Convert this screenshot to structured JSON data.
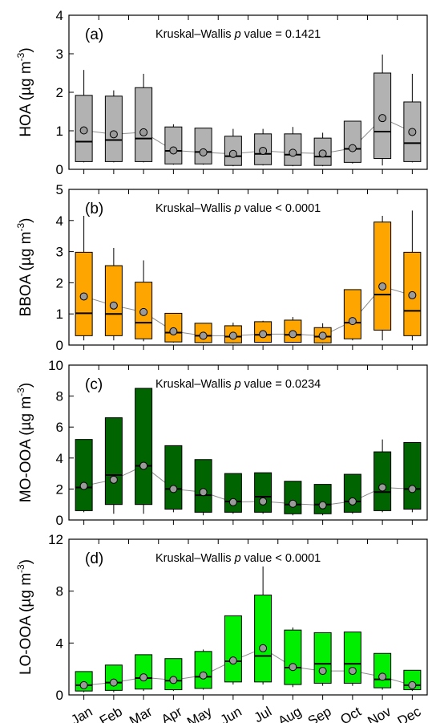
{
  "chart_data": [
    {
      "type": "box",
      "panel_label": "(a)",
      "stat_text": {
        "pre": "Kruskal–Wallis ",
        "p": "p",
        "post": " value = 0.1421"
      },
      "ylabel": {
        "main": "HOA (µg m",
        "sup": "-3",
        "end": ")"
      },
      "ylim": [
        0,
        4
      ],
      "yticks": [
        0,
        1,
        2,
        3,
        4
      ],
      "box_color": "#b2b2b2",
      "categories": [
        "Jan",
        "Feb",
        "Mar",
        "Apr",
        "May",
        "Jun",
        "Jul",
        "Aug",
        "Sep",
        "Oct",
        "Nov",
        "Dec"
      ],
      "boxes": [
        {
          "wlo": 0.18,
          "q1": 0.2,
          "median": 0.72,
          "q3": 1.92,
          "whi": 2.58,
          "mean": 1.01
        },
        {
          "wlo": 0.18,
          "q1": 0.2,
          "median": 0.76,
          "q3": 1.9,
          "whi": 2.05,
          "mean": 0.91
        },
        {
          "wlo": 0.18,
          "q1": 0.2,
          "median": 0.8,
          "q3": 2.12,
          "whi": 2.48,
          "mean": 0.96
        },
        {
          "wlo": 0.12,
          "q1": 0.14,
          "median": 0.48,
          "q3": 1.1,
          "whi": 1.17,
          "mean": 0.49
        },
        {
          "wlo": 0.12,
          "q1": 0.14,
          "median": 0.45,
          "q3": 1.07,
          "whi": 1.07,
          "mean": 0.44
        },
        {
          "wlo": 0.08,
          "q1": 0.1,
          "median": 0.34,
          "q3": 0.86,
          "whi": 1.05,
          "mean": 0.4
        },
        {
          "wlo": 0.1,
          "q1": 0.12,
          "median": 0.4,
          "q3": 0.92,
          "whi": 1.05,
          "mean": 0.48
        },
        {
          "wlo": 0.08,
          "q1": 0.1,
          "median": 0.38,
          "q3": 0.92,
          "whi": 1.1,
          "mean": 0.43
        },
        {
          "wlo": 0.08,
          "q1": 0.1,
          "median": 0.33,
          "q3": 0.81,
          "whi": 0.95,
          "mean": 0.41
        },
        {
          "wlo": 0.15,
          "q1": 0.18,
          "median": 0.53,
          "q3": 1.25,
          "whi": 1.25,
          "mean": 0.55
        },
        {
          "wlo": 0.1,
          "q1": 0.28,
          "median": 0.98,
          "q3": 2.5,
          "whi": 2.98,
          "mean": 1.33
        },
        {
          "wlo": 0.18,
          "q1": 0.2,
          "median": 0.68,
          "q3": 1.75,
          "whi": 2.48,
          "mean": 0.97
        }
      ]
    },
    {
      "type": "box",
      "panel_label": "(b)",
      "stat_text": {
        "pre": "Kruskal–Wallis ",
        "p": "p",
        "post": " value < 0.0001"
      },
      "ylabel": {
        "main": "BBOA (µg m",
        "sup": "-3",
        "end": ")"
      },
      "ylim": [
        0,
        5
      ],
      "yticks": [
        0,
        1,
        2,
        3,
        4,
        5
      ],
      "box_color": "#ffa500",
      "categories": [
        "Jan",
        "Feb",
        "Mar",
        "Apr",
        "May",
        "Jun",
        "Jul",
        "Aug",
        "Sep",
        "Oct",
        "Nov",
        "Dec"
      ],
      "boxes": [
        {
          "wlo": 0.15,
          "q1": 0.3,
          "median": 1.02,
          "q3": 2.98,
          "whi": 4.15,
          "mean": 1.56
        },
        {
          "wlo": 0.15,
          "q1": 0.3,
          "median": 1.0,
          "q3": 2.55,
          "whi": 3.12,
          "mean": 1.27
        },
        {
          "wlo": 0.12,
          "q1": 0.2,
          "median": 0.72,
          "q3": 2.02,
          "whi": 2.72,
          "mean": 1.06
        },
        {
          "wlo": 0.08,
          "q1": 0.1,
          "median": 0.4,
          "q3": 1.02,
          "whi": 1.02,
          "mean": 0.44
        },
        {
          "wlo": 0.06,
          "q1": 0.08,
          "median": 0.3,
          "q3": 0.7,
          "whi": 0.7,
          "mean": 0.3
        },
        {
          "wlo": 0.05,
          "q1": 0.07,
          "median": 0.27,
          "q3": 0.62,
          "whi": 0.72,
          "mean": 0.3
        },
        {
          "wlo": 0.07,
          "q1": 0.09,
          "median": 0.33,
          "q3": 0.75,
          "whi": 0.78,
          "mean": 0.35
        },
        {
          "wlo": 0.07,
          "q1": 0.09,
          "median": 0.33,
          "q3": 0.8,
          "whi": 0.9,
          "mean": 0.35
        },
        {
          "wlo": 0.05,
          "q1": 0.07,
          "median": 0.27,
          "q3": 0.56,
          "whi": 0.7,
          "mean": 0.3
        },
        {
          "wlo": 0.15,
          "q1": 0.2,
          "median": 0.72,
          "q3": 1.78,
          "whi": 1.78,
          "mean": 0.77
        },
        {
          "wlo": 0.15,
          "q1": 0.48,
          "median": 1.62,
          "q3": 3.95,
          "whi": 4.15,
          "mean": 1.88
        },
        {
          "wlo": 0.15,
          "q1": 0.3,
          "median": 1.1,
          "q3": 2.98,
          "whi": 4.32,
          "mean": 1.6
        }
      ]
    },
    {
      "type": "box",
      "panel_label": "(c)",
      "stat_text": {
        "pre": "Kruskal–Wallis ",
        "p": "p",
        "post": " value = 0.0234"
      },
      "ylabel": {
        "main": "MO-OOA (µg m",
        "sup": "-3",
        "end": ")"
      },
      "ylim": [
        0,
        10
      ],
      "yticks": [
        0,
        2,
        4,
        6,
        8,
        10
      ],
      "box_color": "#006400",
      "categories": [
        "Jan",
        "Feb",
        "Mar",
        "Apr",
        "May",
        "Jun",
        "Jul",
        "Aug",
        "Sep",
        "Oct",
        "Nov",
        "Dec"
      ],
      "boxes": [
        {
          "wlo": 0.5,
          "q1": 0.6,
          "median": 2.1,
          "q3": 5.2,
          "whi": 5.2,
          "mean": 2.2
        },
        {
          "wlo": 0.4,
          "q1": 1.0,
          "median": 2.9,
          "q3": 6.6,
          "whi": 6.6,
          "mean": 2.6
        },
        {
          "wlo": 0.4,
          "q1": 1.0,
          "median": 3.5,
          "q3": 8.5,
          "whi": 8.5,
          "mean": 3.5
        },
        {
          "wlo": 0.5,
          "q1": 0.7,
          "median": 2.0,
          "q3": 4.8,
          "whi": 4.8,
          "mean": 2.0
        },
        {
          "wlo": 0.3,
          "q1": 0.5,
          "median": 1.6,
          "q3": 3.9,
          "whi": 3.9,
          "mean": 1.8
        },
        {
          "wlo": 0.4,
          "q1": 0.5,
          "median": 1.2,
          "q3": 3.0,
          "whi": 3.0,
          "mean": 1.15
        },
        {
          "wlo": 0.4,
          "q1": 0.5,
          "median": 1.5,
          "q3": 3.05,
          "whi": 3.05,
          "mean": 1.2
        },
        {
          "wlo": 0.3,
          "q1": 0.4,
          "median": 1.0,
          "q3": 2.5,
          "whi": 2.5,
          "mean": 1.05
        },
        {
          "wlo": 0.3,
          "q1": 0.4,
          "median": 1.0,
          "q3": 2.3,
          "whi": 2.3,
          "mean": 0.95
        },
        {
          "wlo": 0.4,
          "q1": 0.5,
          "median": 1.2,
          "q3": 2.95,
          "whi": 2.95,
          "mean": 1.2
        },
        {
          "wlo": 0.5,
          "q1": 0.6,
          "median": 1.8,
          "q3": 4.4,
          "whi": 5.2,
          "mean": 2.1
        },
        {
          "wlo": 0.5,
          "q1": 0.7,
          "median": 2.0,
          "q3": 5.0,
          "whi": 5.0,
          "mean": 2.0
        }
      ]
    },
    {
      "type": "box",
      "panel_label": "(d)",
      "stat_text": {
        "pre": "Kruskal–Wallis ",
        "p": "p",
        "post": " value <  0.0001"
      },
      "ylabel": {
        "main": "LO-OOA (µg m",
        "sup": "-3",
        "end": ")"
      },
      "ylim": [
        0,
        12
      ],
      "yticks": [
        0,
        4,
        8,
        12
      ],
      "box_color": "#00ee00",
      "categories": [
        "Jan",
        "Feb",
        "Mar",
        "Apr",
        "May",
        "Jun",
        "Jul",
        "Aug",
        "Sep",
        "Oct",
        "Nov",
        "Dec"
      ],
      "boxes": [
        {
          "wlo": 0.2,
          "q1": 0.3,
          "median": 0.75,
          "q3": 1.8,
          "whi": 1.8,
          "mean": 0.75
        },
        {
          "wlo": 0.2,
          "q1": 0.35,
          "median": 0.95,
          "q3": 2.3,
          "whi": 2.3,
          "mean": 0.95
        },
        {
          "wlo": 0.3,
          "q1": 0.45,
          "median": 1.3,
          "q3": 3.1,
          "whi": 3.1,
          "mean": 1.35
        },
        {
          "wlo": 0.3,
          "q1": 0.4,
          "median": 1.1,
          "q3": 2.8,
          "whi": 2.8,
          "mean": 1.15
        },
        {
          "wlo": 0.4,
          "q1": 0.5,
          "median": 1.4,
          "q3": 3.35,
          "whi": 3.5,
          "mean": 1.5
        },
        {
          "wlo": 0.8,
          "q1": 1.0,
          "median": 2.6,
          "q3": 6.1,
          "whi": 6.1,
          "mean": 2.65
        },
        {
          "wlo": 0.8,
          "q1": 1.0,
          "median": 3.0,
          "q3": 7.7,
          "whi": 9.9,
          "mean": 3.6
        },
        {
          "wlo": 0.6,
          "q1": 0.8,
          "median": 2.1,
          "q3": 5.0,
          "whi": 5.2,
          "mean": 2.15
        },
        {
          "wlo": 0.7,
          "q1": 0.9,
          "median": 2.4,
          "q3": 4.8,
          "whi": 4.8,
          "mean": 1.85
        },
        {
          "wlo": 0.7,
          "q1": 0.9,
          "median": 2.4,
          "q3": 4.85,
          "whi": 4.85,
          "mean": 1.85
        },
        {
          "wlo": 0.4,
          "q1": 0.55,
          "median": 1.2,
          "q3": 3.2,
          "whi": 3.2,
          "mean": 1.4
        },
        {
          "wlo": 0.3,
          "q1": 0.4,
          "median": 0.75,
          "q3": 1.9,
          "whi": 1.9,
          "mean": 0.75
        }
      ]
    }
  ]
}
